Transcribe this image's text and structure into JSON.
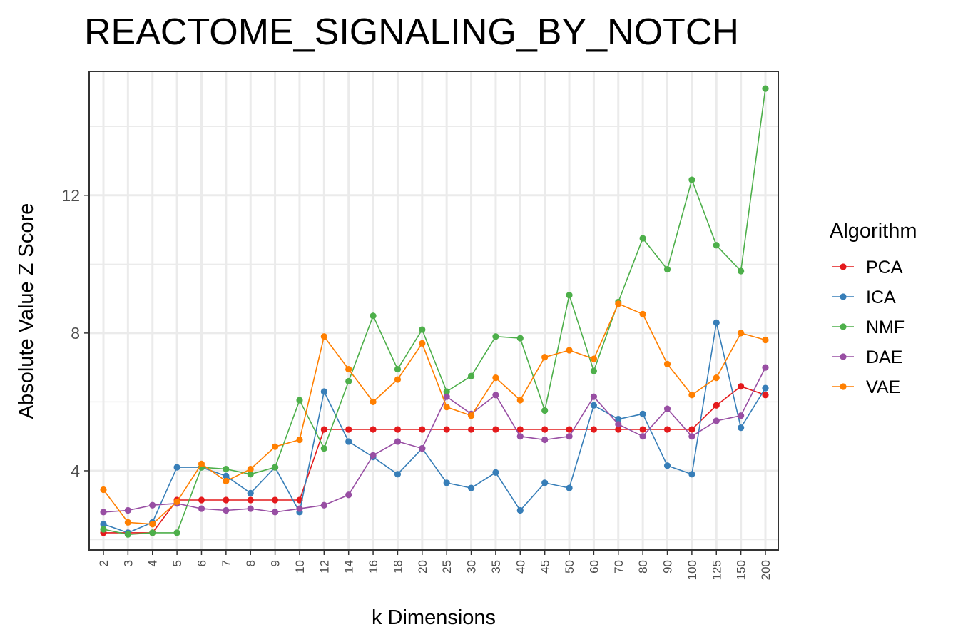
{
  "chart_data": {
    "type": "line",
    "title": "REACTOME_SIGNALING_BY_NOTCH",
    "xlabel": "k Dimensions",
    "ylabel": "Absolute Value Z Score",
    "categories": [
      "2",
      "3",
      "4",
      "5",
      "6",
      "7",
      "8",
      "9",
      "10",
      "12",
      "14",
      "16",
      "18",
      "20",
      "25",
      "30",
      "35",
      "40",
      "45",
      "50",
      "60",
      "70",
      "80",
      "90",
      "100",
      "125",
      "150",
      "200"
    ],
    "yticks": [
      4,
      8,
      12
    ],
    "ylim": [
      1.7,
      15.6
    ],
    "grid": true,
    "legend": {
      "title": "Algorithm",
      "position": "right"
    },
    "series": [
      {
        "name": "PCA",
        "color": "#E41A1C",
        "values": [
          2.2,
          2.2,
          2.2,
          3.15,
          3.15,
          3.15,
          3.15,
          3.15,
          3.15,
          5.2,
          5.2,
          5.2,
          5.2,
          5.2,
          5.2,
          5.2,
          5.2,
          5.2,
          5.2,
          5.2,
          5.2,
          5.2,
          5.2,
          5.2,
          5.2,
          5.9,
          6.45,
          6.2
        ]
      },
      {
        "name": "ICA",
        "color": "#377EB8",
        "values": [
          2.45,
          2.2,
          2.5,
          4.1,
          4.1,
          3.85,
          3.35,
          4.1,
          2.8,
          6.3,
          4.85,
          4.4,
          3.9,
          4.65,
          3.65,
          3.5,
          3.95,
          2.85,
          3.65,
          3.5,
          5.9,
          5.5,
          5.65,
          4.15,
          3.9,
          8.3,
          5.25,
          6.4
        ]
      },
      {
        "name": "NMF",
        "color": "#4DAF4A",
        "values": [
          2.3,
          2.15,
          2.2,
          2.2,
          4.1,
          4.05,
          3.9,
          4.1,
          6.05,
          4.65,
          6.6,
          8.5,
          6.95,
          8.1,
          6.3,
          6.75,
          7.9,
          7.85,
          5.75,
          9.1,
          6.9,
          8.9,
          10.75,
          9.85,
          12.45,
          10.55,
          9.8,
          15.1
        ]
      },
      {
        "name": "DAE",
        "color": "#984EA3",
        "values": [
          2.8,
          2.85,
          3.0,
          3.05,
          2.9,
          2.85,
          2.9,
          2.8,
          2.9,
          3.0,
          3.3,
          4.45,
          4.85,
          4.65,
          6.15,
          5.65,
          6.2,
          5.0,
          4.9,
          5.0,
          6.15,
          5.35,
          5.0,
          5.8,
          5.0,
          5.45,
          5.6,
          7.0
        ]
      },
      {
        "name": "VAE",
        "color": "#FF7F00",
        "values": [
          3.45,
          2.5,
          2.45,
          3.1,
          4.2,
          3.7,
          4.05,
          4.7,
          4.9,
          7.9,
          6.95,
          6.0,
          6.65,
          7.7,
          5.85,
          5.6,
          6.7,
          6.05,
          7.3,
          7.5,
          7.25,
          8.85,
          8.55,
          7.1,
          6.2,
          6.7,
          8.0,
          7.8
        ]
      }
    ]
  }
}
